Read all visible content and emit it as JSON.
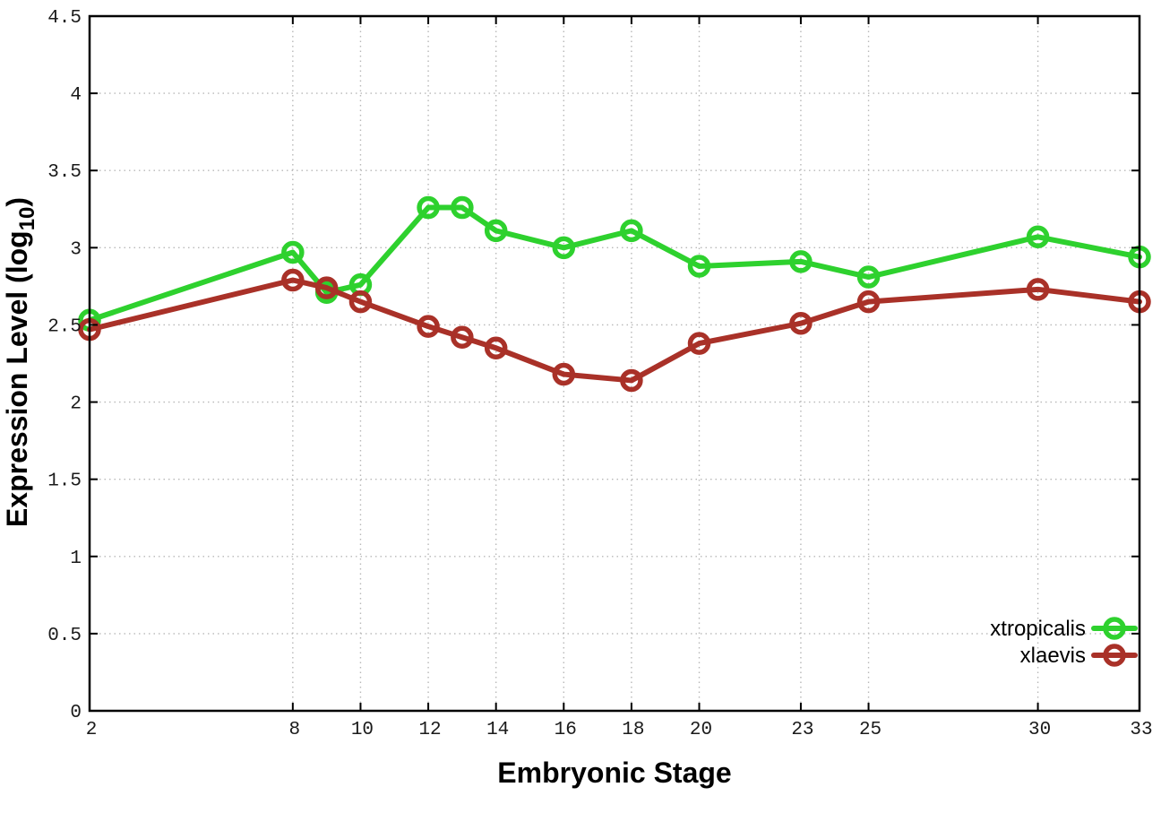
{
  "chart_data": {
    "type": "line",
    "title": "",
    "xlabel": "Embryonic Stage",
    "ylabel_main": "Expression Level (log",
    "ylabel_sub": "10",
    "ylabel_close": ")",
    "xlim": [
      2,
      33
    ],
    "ylim": [
      0,
      4.5
    ],
    "xticks": [
      2,
      8,
      10,
      12,
      14,
      16,
      18,
      20,
      23,
      25,
      30,
      33
    ],
    "yticks": [
      0,
      0.5,
      1,
      1.5,
      2,
      2.5,
      3,
      3.5,
      4,
      4.5
    ],
    "grid": true,
    "legend_position": "bottom-right",
    "marker_style": "open-circle",
    "x": [
      2,
      8,
      9,
      10,
      12,
      13,
      14,
      16,
      18,
      20,
      23,
      25,
      30,
      33
    ],
    "series": [
      {
        "name": "xtropicalis",
        "color": "#2ed12e",
        "values": [
          2.53,
          2.97,
          2.71,
          2.76,
          3.26,
          3.26,
          3.11,
          3.0,
          3.11,
          2.88,
          2.91,
          2.81,
          3.07,
          2.94
        ]
      },
      {
        "name": "xlaevis",
        "color": "#a93128",
        "values": [
          2.47,
          2.79,
          2.74,
          2.65,
          2.49,
          2.42,
          2.35,
          2.18,
          2.14,
          2.38,
          2.51,
          2.65,
          2.73,
          2.65
        ]
      }
    ]
  }
}
